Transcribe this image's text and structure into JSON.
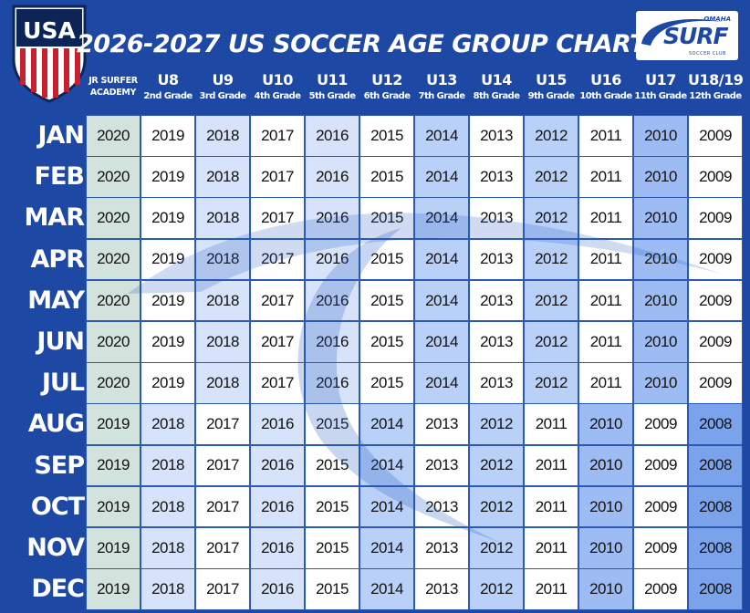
{
  "title": "2026-2027 US SOCCER AGE GROUP CHART",
  "crest": {
    "letters": "USA"
  },
  "logo": {
    "top": "OMAHA",
    "word": "SURF",
    "sub": "SOCCER CLUB"
  },
  "colors": {
    "background": "#1d48a4",
    "jr": "#d2e2dd",
    "white": "#ffffff",
    "light": "#d6e3fb",
    "medium": "#b9d1f9",
    "strong": "#9dbcf3",
    "dark": "#7aa3ec"
  },
  "chart_data": {
    "type": "table",
    "title": "2026-2027 US SOCCER AGE GROUP CHART",
    "columns": [
      {
        "age": "JR SURFER",
        "grade": "ACADEMY"
      },
      {
        "age": "U8",
        "grade": "2nd Grade"
      },
      {
        "age": "U9",
        "grade": "3rd Grade"
      },
      {
        "age": "U10",
        "grade": "4th Grade"
      },
      {
        "age": "U11",
        "grade": "5th Grade"
      },
      {
        "age": "U12",
        "grade": "6th Grade"
      },
      {
        "age": "U13",
        "grade": "7th Grade"
      },
      {
        "age": "U14",
        "grade": "8th Grade"
      },
      {
        "age": "U15",
        "grade": "9th Grade"
      },
      {
        "age": "U16",
        "grade": "10th Grade"
      },
      {
        "age": "U17",
        "grade": "11th Grade"
      },
      {
        "age": "U18/19",
        "grade": "12th Grade"
      }
    ],
    "rows": [
      {
        "month": "JAN",
        "values": [
          "2020",
          "2019",
          "2018",
          "2017",
          "2016",
          "2015",
          "2014",
          "2013",
          "2012",
          "2011",
          "2010",
          "2009"
        ]
      },
      {
        "month": "FEB",
        "values": [
          "2020",
          "2019",
          "2018",
          "2017",
          "2016",
          "2015",
          "2014",
          "2013",
          "2012",
          "2011",
          "2010",
          "2009"
        ]
      },
      {
        "month": "MAR",
        "values": [
          "2020",
          "2019",
          "2018",
          "2017",
          "2016",
          "2015",
          "2014",
          "2013",
          "2012",
          "2011",
          "2010",
          "2009"
        ]
      },
      {
        "month": "APR",
        "values": [
          "2020",
          "2019",
          "2018",
          "2017",
          "2016",
          "2015",
          "2014",
          "2013",
          "2012",
          "2011",
          "2010",
          "2009"
        ]
      },
      {
        "month": "MAY",
        "values": [
          "2020",
          "2019",
          "2018",
          "2017",
          "2016",
          "2015",
          "2014",
          "2013",
          "2012",
          "2011",
          "2010",
          "2009"
        ]
      },
      {
        "month": "JUN",
        "values": [
          "2020",
          "2019",
          "2018",
          "2017",
          "2016",
          "2015",
          "2014",
          "2013",
          "2012",
          "2011",
          "2010",
          "2009"
        ]
      },
      {
        "month": "JUL",
        "values": [
          "2020",
          "2019",
          "2018",
          "2017",
          "2016",
          "2015",
          "2014",
          "2013",
          "2012",
          "2011",
          "2010",
          "2009"
        ]
      },
      {
        "month": "AUG",
        "values": [
          "2019",
          "2018",
          "2017",
          "2016",
          "2015",
          "2014",
          "2013",
          "2012",
          "2011",
          "2010",
          "2009",
          "2008"
        ]
      },
      {
        "month": "SEP",
        "values": [
          "2019",
          "2018",
          "2017",
          "2016",
          "2015",
          "2014",
          "2013",
          "2012",
          "2011",
          "2010",
          "2009",
          "2008"
        ]
      },
      {
        "month": "OCT",
        "values": [
          "2019",
          "2018",
          "2017",
          "2016",
          "2015",
          "2014",
          "2013",
          "2012",
          "2011",
          "2010",
          "2009",
          "2008"
        ]
      },
      {
        "month": "NOV",
        "values": [
          "2019",
          "2018",
          "2017",
          "2016",
          "2015",
          "2014",
          "2013",
          "2012",
          "2011",
          "2010",
          "2009",
          "2008"
        ]
      },
      {
        "month": "DEC",
        "values": [
          "2019",
          "2018",
          "2017",
          "2016",
          "2015",
          "2014",
          "2013",
          "2012",
          "2011",
          "2010",
          "2009",
          "2008"
        ]
      }
    ],
    "shading": {
      "2020": "jr",
      "2019": "white",
      "2018": "light",
      "2017": "white",
      "2016": "light",
      "2015": "white",
      "2014": "medium",
      "2013": "white",
      "2012": "medium",
      "2011": "white",
      "2010": "strong",
      "2009": "white",
      "2008": "dark"
    },
    "shading_first_half": {
      "2019": "white",
      "2018": "light",
      "2017": "white",
      "2016": "light",
      "2015": "white",
      "2014": "medium",
      "2013": "white",
      "2012": "medium",
      "2011": "white",
      "2010": "strong",
      "2009": "white"
    },
    "shading_second_half": {
      "2019": "white",
      "2018": "light",
      "2017": "white",
      "2016": "light",
      "2015": "white",
      "2014": "medium",
      "2013": "white",
      "2012": "medium",
      "2011": "white",
      "2010": "strong",
      "2009": "white",
      "2008": "dark"
    }
  }
}
